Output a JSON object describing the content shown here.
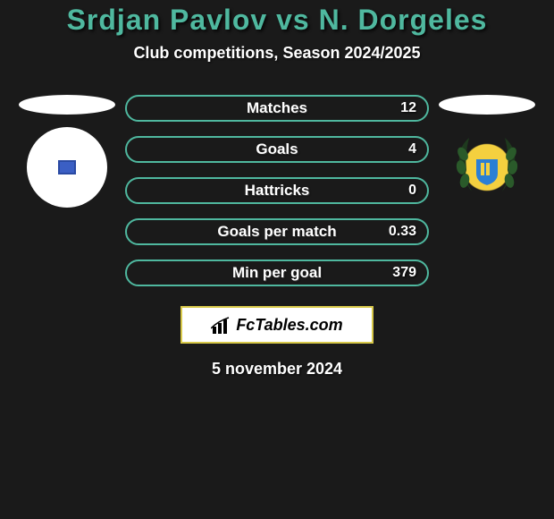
{
  "title": {
    "player1": "Srdjan Pavlov",
    "vs": " vs ",
    "player2": "N. Dorgeles",
    "color": "#4fb89f",
    "fontsize": 32
  },
  "subtitle": {
    "text": "Club competitions, Season 2024/2025",
    "fontsize": 18
  },
  "bars": {
    "fill_color": "#1a1a1a",
    "border_color": "#4fb89f",
    "border_width": 2,
    "height": 30,
    "radius": 15,
    "label_fontsize": 17,
    "value_fontsize": 16,
    "items": [
      {
        "label": "Matches",
        "right_value": "12"
      },
      {
        "label": "Goals",
        "right_value": "4"
      },
      {
        "label": "Hattricks",
        "right_value": "0"
      },
      {
        "label": "Goals per match",
        "right_value": "0.33"
      },
      {
        "label": "Min per goal",
        "right_value": "379"
      }
    ]
  },
  "badges": {
    "left": {
      "bg": "#ffffff",
      "inner": "#3b5fc4"
    },
    "right": {
      "shield_fill": "#2b7fd4",
      "shield_accent": "#f4d03f",
      "wreath": "#1e3a1e"
    }
  },
  "ellipse": {
    "color": "#ffffff"
  },
  "brand": {
    "text": "FcTables.com",
    "border_color": "#d8c94a",
    "icon_color": "#000000"
  },
  "date": {
    "text": "5 november 2024",
    "fontsize": 18
  },
  "background_color": "#1a1a1a"
}
